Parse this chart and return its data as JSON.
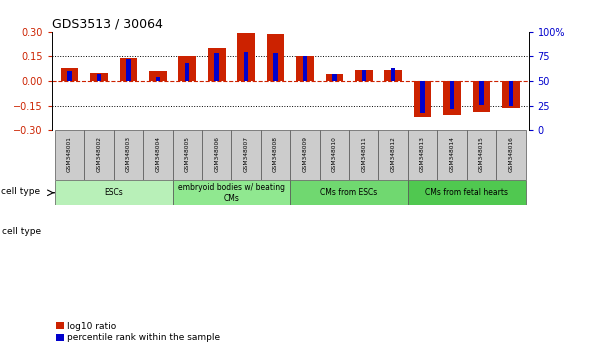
{
  "title": "GDS3513 / 30064",
  "samples": [
    "GSM348001",
    "GSM348002",
    "GSM348003",
    "GSM348004",
    "GSM348005",
    "GSM348006",
    "GSM348007",
    "GSM348008",
    "GSM348009",
    "GSM348010",
    "GSM348011",
    "GSM348012",
    "GSM348013",
    "GSM348014",
    "GSM348015",
    "GSM348016"
  ],
  "log10_ratio": [
    0.08,
    0.05,
    0.14,
    0.06,
    0.15,
    0.2,
    0.29,
    0.285,
    0.155,
    0.04,
    0.07,
    0.07,
    -0.22,
    -0.21,
    -0.19,
    -0.165
  ],
  "percentile_rank": [
    60,
    57,
    72,
    54,
    68,
    78,
    80,
    79,
    75,
    57,
    61,
    63,
    18,
    22,
    26,
    25
  ],
  "cell_types": [
    {
      "label": "ESCs",
      "start": 0,
      "end": 4,
      "color": "#b8f0b8"
    },
    {
      "label": "embryoid bodies w/ beating\nCMs",
      "start": 4,
      "end": 8,
      "color": "#90e890"
    },
    {
      "label": "CMs from ESCs",
      "start": 8,
      "end": 12,
      "color": "#70d870"
    },
    {
      "label": "CMs from fetal hearts",
      "start": 12,
      "end": 16,
      "color": "#50c850"
    }
  ],
  "bar_color_red": "#cc2200",
  "bar_color_blue": "#0000cc",
  "ylim_left": [
    -0.3,
    0.3
  ],
  "ylim_right": [
    0,
    100
  ],
  "yticks_left": [
    -0.3,
    -0.15,
    0.0,
    0.15,
    0.3
  ],
  "yticks_right": [
    0,
    25,
    50,
    75,
    100
  ],
  "hlines_dotted": [
    -0.15,
    0.15
  ],
  "legend_items": [
    {
      "color": "#cc2200",
      "label": "log10 ratio"
    },
    {
      "color": "#0000cc",
      "label": "percentile rank within the sample"
    }
  ],
  "bar_width": 0.6,
  "blue_bar_width": 0.15
}
